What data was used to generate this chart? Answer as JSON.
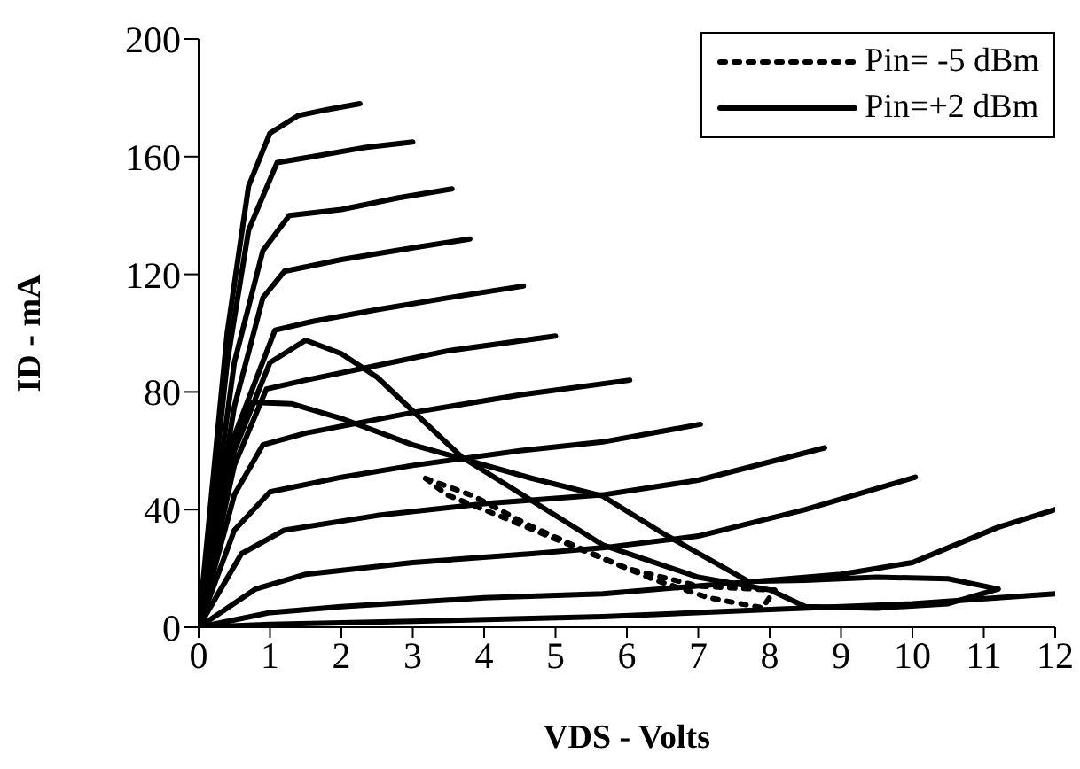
{
  "chart_data": {
    "type": "line",
    "xlabel": "VDS - Volts",
    "ylabel": "ID - mA",
    "xlim": [
      0,
      12
    ],
    "xticks": [
      0,
      1,
      2,
      3,
      4,
      5,
      6,
      7,
      8,
      9,
      10,
      11,
      12
    ],
    "ylim": [
      0,
      200
    ],
    "yticks": [
      0,
      40,
      80,
      120,
      160,
      200
    ],
    "legend": "top right",
    "series": [
      {
        "color": "#000000",
        "x": [
          0,
          0.4,
          0.7,
          1.0,
          1.4,
          1.8,
          2.26
        ],
        "values": [
          0,
          100,
          150,
          168,
          174,
          176,
          178
        ]
      },
      {
        "color": "#000000",
        "x": [
          0,
          0.4,
          0.7,
          1.1,
          1.6,
          2.3,
          3.0
        ],
        "values": [
          0,
          90,
          135,
          158,
          160,
          163,
          165
        ]
      },
      {
        "color": "#000000",
        "x": [
          0,
          0.5,
          0.9,
          1.27,
          2,
          2.8,
          3.55
        ],
        "values": [
          0,
          90,
          128,
          140,
          142,
          146,
          149
        ]
      },
      {
        "color": "#000000",
        "x": [
          0,
          0.5,
          0.9,
          1.2,
          2,
          3,
          3.8
        ],
        "values": [
          0,
          75,
          112,
          121,
          125,
          129,
          132
        ]
      },
      {
        "color": "#000000",
        "x": [
          0,
          0.5,
          1.07,
          1.6,
          2.5,
          3.5,
          4.55
        ],
        "values": [
          0,
          65,
          101,
          104,
          108,
          112,
          116
        ]
      },
      {
        "color": "#000000",
        "x": [
          0,
          0.5,
          0.95,
          1.5,
          2.5,
          3.5,
          5.0
        ],
        "values": [
          0,
          55,
          81,
          84,
          89,
          94,
          99
        ]
      },
      {
        "color": "#000000",
        "x": [
          0,
          0.5,
          0.9,
          1.5,
          3,
          4.5,
          6.04
        ],
        "values": [
          0,
          45,
          62,
          66,
          73,
          79,
          84
        ]
      },
      {
        "color": "#000000",
        "x": [
          0,
          0.5,
          1,
          2,
          3,
          4.5,
          5.66,
          7.03
        ],
        "values": [
          0,
          33,
          46,
          51,
          55,
          60,
          63,
          69
        ]
      },
      {
        "color": "#000000",
        "x": [
          0,
          0.6,
          1.2,
          2.5,
          4,
          5.66,
          7,
          8.77
        ],
        "values": [
          0,
          25,
          33,
          38,
          42,
          45,
          50,
          61
        ]
      },
      {
        "color": "#000000",
        "x": [
          0,
          0.8,
          1.5,
          3,
          4.67,
          5.66,
          7,
          8.5,
          10.04
        ],
        "values": [
          0,
          13,
          18,
          22,
          25,
          27,
          31,
          40,
          51
        ]
      },
      {
        "color": "#000000",
        "x": [
          0,
          1,
          2,
          4,
          5.66,
          8,
          9,
          10,
          10.5,
          11.2,
          12
        ],
        "values": [
          0,
          5,
          7,
          10,
          11.4,
          16,
          18,
          22,
          27,
          34,
          40
        ]
      },
      {
        "color": "#000000",
        "x": [
          0,
          1,
          3,
          5.66,
          8,
          10,
          12
        ],
        "values": [
          0,
          1,
          2,
          3.6,
          6,
          8,
          11.4
        ]
      },
      {
        "name": "Pin= -5 dBm",
        "color": "#000000",
        "line_style": "dotted",
        "x": [
          3.18,
          3.85,
          4.6,
          5.24,
          5.66,
          6.4,
          7.15,
          7.9,
          8.07
        ],
        "values": [
          50.6,
          44.6,
          35,
          28,
          23.5,
          16,
          10,
          6.6,
          12.6
        ]
      },
      {
        "color": "#000000",
        "line_style": "dotted",
        "x": [
          3.18,
          3.48,
          4.2,
          5,
          6,
          7,
          8.07
        ],
        "values": [
          50.6,
          45,
          38,
          30,
          20,
          14,
          12.6
        ]
      },
      {
        "name": "Pin=+2 dBm",
        "color": "#000000",
        "line_style": "solid",
        "x": [
          0,
          0.5,
          1,
          1.5,
          2,
          2.5,
          3.68,
          4.67,
          5.66,
          7,
          8,
          8.5,
          9.5,
          10.5,
          11.2
        ],
        "values": [
          0,
          60,
          90,
          97.6,
          93,
          85,
          58,
          43,
          28,
          17,
          12.7,
          7,
          6.5,
          8,
          13
        ]
      },
      {
        "color": "#000000",
        "line_style": "solid",
        "x": [
          0,
          0.3,
          0.7,
          1.3,
          2,
          3,
          4.67,
          5.66,
          6.5,
          7.7,
          8.5,
          9.5,
          10.5,
          11.2
        ],
        "values": [
          0,
          45,
          76.5,
          76,
          71,
          62,
          50.6,
          44.6,
          32,
          15.6,
          16,
          17,
          16.5,
          13
        ]
      }
    ]
  }
}
